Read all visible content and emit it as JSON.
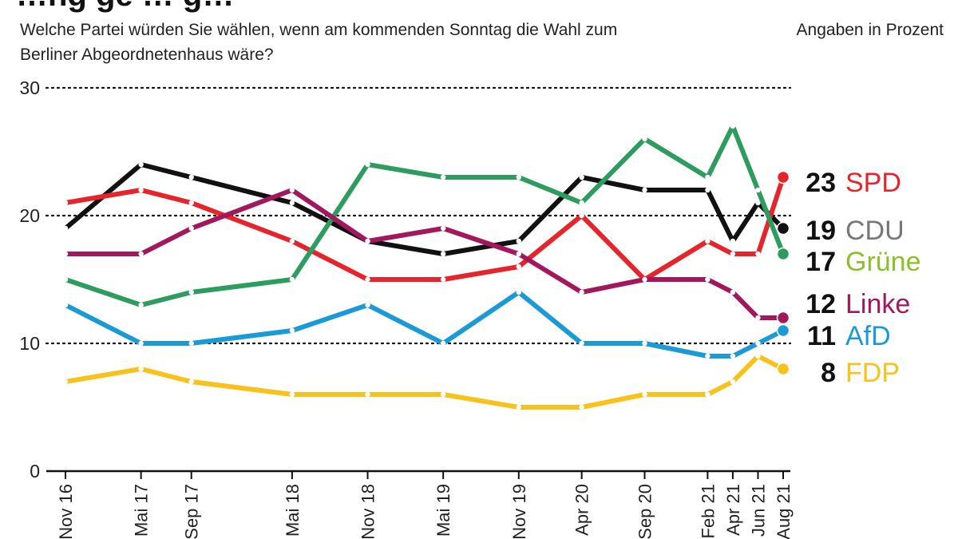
{
  "header": {
    "title": "…ng ge … g…",
    "question": "Welche Partei würden Sie wählen, wenn am kommenden Sonntag die Wahl zum Berliner Abgeordnetenhaus wäre?",
    "unit_note": "Angaben in Prozent"
  },
  "chart_data": {
    "type": "line",
    "title": "",
    "xlabel": "",
    "ylabel": "",
    "ylim": [
      0,
      30
    ],
    "y_ticks": [
      0,
      10,
      20,
      30
    ],
    "gridlines_dotted_at": [
      10,
      20,
      30
    ],
    "x_labels": [
      "Nov 16",
      "Mai 17",
      "Sep 17",
      "Mai 18",
      "Nov 18",
      "Mai 19",
      "Nov 19",
      "Apr 20",
      "Sep 20",
      "Feb 21",
      "Apr 21",
      "Jun 21",
      "Aug 21"
    ],
    "x_months": [
      0,
      6,
      10,
      18,
      24,
      30,
      36,
      41,
      46,
      51,
      53,
      55,
      57
    ],
    "series": [
      {
        "name": "CDU",
        "color": "#111111",
        "label_color": "#777777",
        "end_label": "19",
        "points": [
          [
            0,
            19
          ],
          [
            6,
            24
          ],
          [
            10,
            23
          ],
          [
            18,
            21
          ],
          [
            24,
            18
          ],
          [
            30,
            17
          ],
          [
            36,
            18
          ],
          [
            41,
            23
          ],
          [
            46,
            22
          ],
          [
            51,
            22
          ],
          [
            53,
            18
          ],
          [
            55,
            21
          ],
          [
            57,
            19
          ]
        ]
      },
      {
        "name": "SPD",
        "color": "#e5252b",
        "label_color": "#e5252b",
        "end_label": "23",
        "points": [
          [
            0,
            21
          ],
          [
            6,
            22
          ],
          [
            10,
            21
          ],
          [
            18,
            18
          ],
          [
            24,
            15
          ],
          [
            30,
            15
          ],
          [
            36,
            16
          ],
          [
            41,
            20
          ],
          [
            46,
            15
          ],
          [
            51,
            18
          ],
          [
            53,
            17
          ],
          [
            55,
            17
          ],
          [
            57,
            23
          ]
        ]
      },
      {
        "name": "Grüne",
        "color": "#2e9c5f",
        "label_color": "#8cbf2a",
        "end_label": "17",
        "points": [
          [
            0,
            15
          ],
          [
            6,
            13
          ],
          [
            10,
            14
          ],
          [
            18,
            15
          ],
          [
            24,
            24
          ],
          [
            30,
            23
          ],
          [
            36,
            23
          ],
          [
            41,
            21
          ],
          [
            46,
            26
          ],
          [
            51,
            23
          ],
          [
            53,
            27
          ],
          [
            55,
            22
          ],
          [
            57,
            17
          ]
        ]
      },
      {
        "name": "Linke",
        "color": "#a2185d",
        "label_color": "#a2185d",
        "end_label": "12",
        "points": [
          [
            0,
            17
          ],
          [
            6,
            17
          ],
          [
            10,
            19
          ],
          [
            18,
            22
          ],
          [
            24,
            18
          ],
          [
            30,
            19
          ],
          [
            36,
            17
          ],
          [
            41,
            14
          ],
          [
            46,
            15
          ],
          [
            51,
            15
          ],
          [
            53,
            14
          ],
          [
            55,
            12
          ],
          [
            57,
            12
          ]
        ]
      },
      {
        "name": "AfD",
        "color": "#1b9ad6",
        "label_color": "#1b9ad6",
        "end_label": "11",
        "points": [
          [
            0,
            13
          ],
          [
            6,
            10
          ],
          [
            10,
            10
          ],
          [
            18,
            11
          ],
          [
            24,
            13
          ],
          [
            30,
            10
          ],
          [
            36,
            14
          ],
          [
            41,
            10
          ],
          [
            46,
            10
          ],
          [
            51,
            9
          ],
          [
            53,
            9
          ],
          [
            55,
            10
          ],
          [
            57,
            11
          ]
        ]
      },
      {
        "name": "FDP",
        "color": "#f7c21b",
        "label_color": "#f7c21b",
        "end_label": "8",
        "points": [
          [
            0,
            7
          ],
          [
            6,
            8
          ],
          [
            10,
            7
          ],
          [
            18,
            6
          ],
          [
            24,
            6
          ],
          [
            30,
            6
          ],
          [
            36,
            5
          ],
          [
            41,
            5
          ],
          [
            46,
            6
          ],
          [
            51,
            6
          ],
          [
            53,
            7
          ],
          [
            55,
            9
          ],
          [
            57,
            8
          ]
        ]
      }
    ]
  }
}
